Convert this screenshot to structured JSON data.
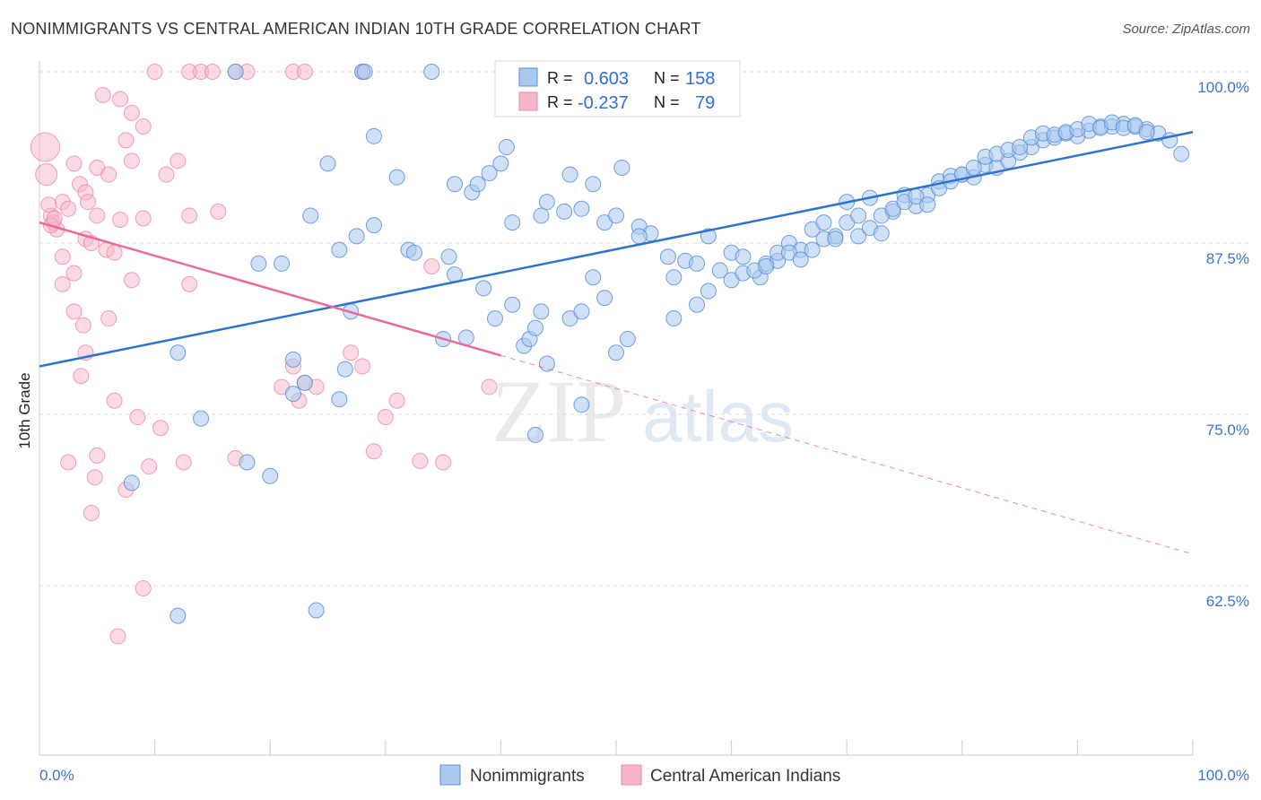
{
  "title": "NONIMMIGRANTS VS CENTRAL AMERICAN INDIAN 10TH GRADE CORRELATION CHART",
  "source": "Source: ZipAtlas.com",
  "watermark": {
    "zip": "ZIP",
    "atlas": "atlas"
  },
  "colors": {
    "blue_fill": "#aac8f0",
    "blue_stroke": "#5b8fd6",
    "blue_line": "#2f73d0",
    "pink_fill": "#f7b6c8",
    "pink_stroke": "#e88aa6",
    "pink_line": "#e8699a",
    "grid": "#dddddd",
    "tick_label": "#3b74c9"
  },
  "legend": {
    "rows": [
      {
        "r_label": "R =",
        "r_value": "0.603",
        "n_label": "N =",
        "n_value": "158"
      },
      {
        "r_label": "R =",
        "r_value": "-0.237",
        "n_label": "N =",
        "n_value": "79"
      }
    ]
  },
  "chart_data": {
    "type": "scatter",
    "title": "NONIMMIGRANTS VS CENTRAL AMERICAN INDIAN 10TH GRADE CORRELATION CHART",
    "xlabel": "",
    "ylabel": "10th Grade",
    "xlim": [
      0,
      100
    ],
    "ylim": [
      51.5,
      102
    ],
    "y_ticks": [
      100.0,
      87.5,
      75.0,
      62.5
    ],
    "y_tick_labels": [
      "100.0%",
      "87.5%",
      "75.0%",
      "62.5%"
    ],
    "x_tick_labels": [
      "0.0%",
      "100.0%"
    ],
    "grid": "dashed horizontal",
    "legend_position": "top-center",
    "series": [
      {
        "name": "Nonimmigrants",
        "color": "#aac8f0",
        "trend": {
          "x": [
            0,
            100
          ],
          "y": [
            78.5,
            95.6
          ]
        },
        "points": [
          [
            17,
            100
          ],
          [
            28,
            100
          ],
          [
            28.2,
            100
          ],
          [
            34,
            100
          ],
          [
            25,
            93.3
          ],
          [
            29,
            95.3
          ],
          [
            31,
            92.3
          ],
          [
            36,
            91.8
          ],
          [
            37.5,
            91.2
          ],
          [
            38,
            91.8
          ],
          [
            39,
            92.6
          ],
          [
            40,
            93.3
          ],
          [
            40.5,
            94.5
          ],
          [
            41,
            89.0
          ],
          [
            43.5,
            89.5
          ],
          [
            44,
            90.5
          ],
          [
            45.5,
            89.8
          ],
          [
            46,
            92.5
          ],
          [
            47,
            90.0
          ],
          [
            48,
            91.8
          ],
          [
            49,
            89.0
          ],
          [
            50,
            89.5
          ],
          [
            50.5,
            93.0
          ],
          [
            52,
            88.7
          ],
          [
            53,
            88.2
          ],
          [
            55,
            85.0
          ],
          [
            54.5,
            86.5
          ],
          [
            56,
            86.2
          ],
          [
            57,
            86.0
          ],
          [
            52,
            88.0
          ],
          [
            58,
            88.0
          ],
          [
            60,
            86.8
          ],
          [
            61,
            86.5
          ],
          [
            62.5,
            85.0
          ],
          [
            63,
            86.0
          ],
          [
            64,
            86.2
          ],
          [
            65,
            87.5
          ],
          [
            66,
            87.0
          ],
          [
            67,
            88.5
          ],
          [
            68,
            89.0
          ],
          [
            69,
            88.0
          ],
          [
            70,
            90.5
          ],
          [
            71,
            88.0
          ],
          [
            72,
            88.6
          ],
          [
            73,
            88.2
          ],
          [
            74,
            89.8
          ],
          [
            75,
            91.0
          ],
          [
            76,
            90.2
          ],
          [
            77,
            91.0
          ],
          [
            78,
            92.0
          ],
          [
            79,
            92.4
          ],
          [
            80,
            92.5
          ],
          [
            81,
            92.3
          ],
          [
            82,
            93.2
          ],
          [
            83,
            93.0
          ],
          [
            84,
            93.5
          ],
          [
            85,
            94.1
          ],
          [
            86,
            94.5
          ],
          [
            87,
            95.0
          ],
          [
            88,
            95.2
          ],
          [
            89,
            95.5
          ],
          [
            90,
            95.3
          ],
          [
            91,
            95.7
          ],
          [
            92,
            96.0
          ],
          [
            93,
            96.0
          ],
          [
            94,
            96.2
          ],
          [
            95,
            96.0
          ],
          [
            96,
            95.8
          ],
          [
            97,
            95.5
          ],
          [
            98,
            95.0
          ],
          [
            99,
            94.0
          ],
          [
            23.5,
            89.5
          ],
          [
            19,
            86.0
          ],
          [
            21,
            86.0
          ],
          [
            26,
            87.0
          ],
          [
            27.5,
            88.0
          ],
          [
            29,
            88.8
          ],
          [
            32,
            87.0
          ],
          [
            32.5,
            86.8
          ],
          [
            35.5,
            86.5
          ],
          [
            36,
            85.2
          ],
          [
            38.5,
            84.2
          ],
          [
            39.5,
            82.0
          ],
          [
            41,
            83.0
          ],
          [
            42,
            80.0
          ],
          [
            42.5,
            80.5
          ],
          [
            43.5,
            82.5
          ],
          [
            44,
            78.7
          ],
          [
            46,
            82.0
          ],
          [
            47,
            82.5
          ],
          [
            48,
            85.0
          ],
          [
            49,
            83.5
          ],
          [
            50,
            79.5
          ],
          [
            51,
            80.5
          ],
          [
            55,
            82.0
          ],
          [
            57,
            83.0
          ],
          [
            58,
            84.0
          ],
          [
            59,
            85.5
          ],
          [
            60,
            84.8
          ],
          [
            61,
            85.3
          ],
          [
            62,
            85.5
          ],
          [
            63,
            85.8
          ],
          [
            64,
            86.8
          ],
          [
            65,
            86.8
          ],
          [
            66,
            86.3
          ],
          [
            67,
            87.0
          ],
          [
            68,
            87.8
          ],
          [
            69,
            87.8
          ],
          [
            70,
            89.0
          ],
          [
            71,
            89.5
          ],
          [
            72,
            90.8
          ],
          [
            73,
            89.5
          ],
          [
            74,
            90.0
          ],
          [
            75,
            90.5
          ],
          [
            76,
            90.9
          ],
          [
            77,
            90.3
          ],
          [
            78,
            91.5
          ],
          [
            79,
            92.0
          ],
          [
            80,
            92.5
          ],
          [
            81,
            93.0
          ],
          [
            82,
            93.8
          ],
          [
            83,
            94.0
          ],
          [
            84,
            94.3
          ],
          [
            85,
            94.5
          ],
          [
            86,
            95.2
          ],
          [
            87,
            95.5
          ],
          [
            88,
            95.4
          ],
          [
            89,
            95.6
          ],
          [
            90,
            95.8
          ],
          [
            91,
            96.2
          ],
          [
            92,
            95.9
          ],
          [
            93,
            96.3
          ],
          [
            94,
            95.9
          ],
          [
            95,
            96.1
          ],
          [
            96,
            95.6
          ],
          [
            22,
            79.0
          ],
          [
            23,
            77.3
          ],
          [
            27,
            82.5
          ],
          [
            35,
            80.5
          ],
          [
            37,
            80.6
          ],
          [
            43,
            81.3
          ],
          [
            14,
            74.7
          ],
          [
            22,
            76.5
          ],
          [
            26,
            76.1
          ],
          [
            12,
            79.5
          ],
          [
            43,
            73.5
          ],
          [
            12,
            60.3
          ],
          [
            24,
            60.7
          ],
          [
            26.5,
            78.3
          ],
          [
            47,
            75.7
          ],
          [
            8,
            70.0
          ],
          [
            18,
            71.5
          ],
          [
            20,
            70.5
          ]
        ]
      },
      {
        "name": "Central American Indians",
        "color": "#f7b6c8",
        "trend": {
          "x": [
            0,
            40
          ],
          "y": [
            89.0,
            79.3
          ]
        },
        "trend_extension": {
          "x": [
            40,
            100
          ],
          "y": [
            79.3,
            64.8
          ]
        },
        "points": [
          [
            10,
            100
          ],
          [
            13,
            100
          ],
          [
            14,
            100
          ],
          [
            15,
            100
          ],
          [
            17,
            100
          ],
          [
            18,
            100
          ],
          [
            22,
            100
          ],
          [
            23,
            100
          ],
          [
            28,
            100
          ],
          [
            5.5,
            98.3
          ],
          [
            7,
            98.0
          ],
          [
            8,
            97.0
          ],
          [
            9,
            96.0
          ],
          [
            7.5,
            95.0
          ],
          [
            8,
            93.5
          ],
          [
            5,
            93.0
          ],
          [
            6,
            92.5
          ],
          [
            11,
            92.5
          ],
          [
            12,
            93.5
          ],
          [
            3,
            93.3
          ],
          [
            3.5,
            91.8
          ],
          [
            4,
            91.2
          ],
          [
            4.2,
            90.5
          ],
          [
            2,
            90.5
          ],
          [
            2.5,
            90.0
          ],
          [
            1,
            89.5
          ],
          [
            1.2,
            89.0
          ],
          [
            1.5,
            88.5
          ],
          [
            5,
            89.5
          ],
          [
            7,
            89.2
          ],
          [
            9,
            89.3
          ],
          [
            13,
            89.5
          ],
          [
            15.5,
            89.8
          ],
          [
            4,
            87.8
          ],
          [
            4.5,
            87.5
          ],
          [
            5.8,
            87.0
          ],
          [
            6.5,
            86.8
          ],
          [
            2,
            86.5
          ],
          [
            3,
            85.3
          ],
          [
            8,
            84.8
          ],
          [
            13,
            84.5
          ],
          [
            2,
            84.5
          ],
          [
            3,
            82.5
          ],
          [
            6,
            82.0
          ],
          [
            3.8,
            81.5
          ],
          [
            4,
            79.5
          ],
          [
            3.6,
            77.8
          ],
          [
            6.5,
            76.0
          ],
          [
            8.5,
            74.8
          ],
          [
            5,
            72.0
          ],
          [
            9.5,
            71.2
          ],
          [
            12.5,
            71.5
          ],
          [
            17,
            71.8
          ],
          [
            21,
            77.0
          ],
          [
            22,
            78.5
          ],
          [
            22.5,
            76.0
          ],
          [
            24,
            77.0
          ],
          [
            27,
            79.5
          ],
          [
            28,
            78.5
          ],
          [
            34,
            85.8
          ],
          [
            30,
            74.8
          ],
          [
            31,
            76.0
          ],
          [
            29,
            72.3
          ],
          [
            33,
            71.6
          ],
          [
            39,
            77.0
          ],
          [
            35,
            71.5
          ],
          [
            23,
            77.3
          ],
          [
            2.5,
            71.5
          ],
          [
            4.5,
            67.8
          ],
          [
            7.5,
            69.5
          ],
          [
            9,
            62.3
          ],
          [
            0.5,
            94.5
          ],
          [
            0.6,
            92.5
          ],
          [
            1,
            88.8
          ],
          [
            1.3,
            89.3
          ],
          [
            0.8,
            90.3
          ],
          [
            10.5,
            74.0
          ],
          [
            4.8,
            70.4
          ],
          [
            6.8,
            58.8
          ]
        ]
      }
    ]
  }
}
